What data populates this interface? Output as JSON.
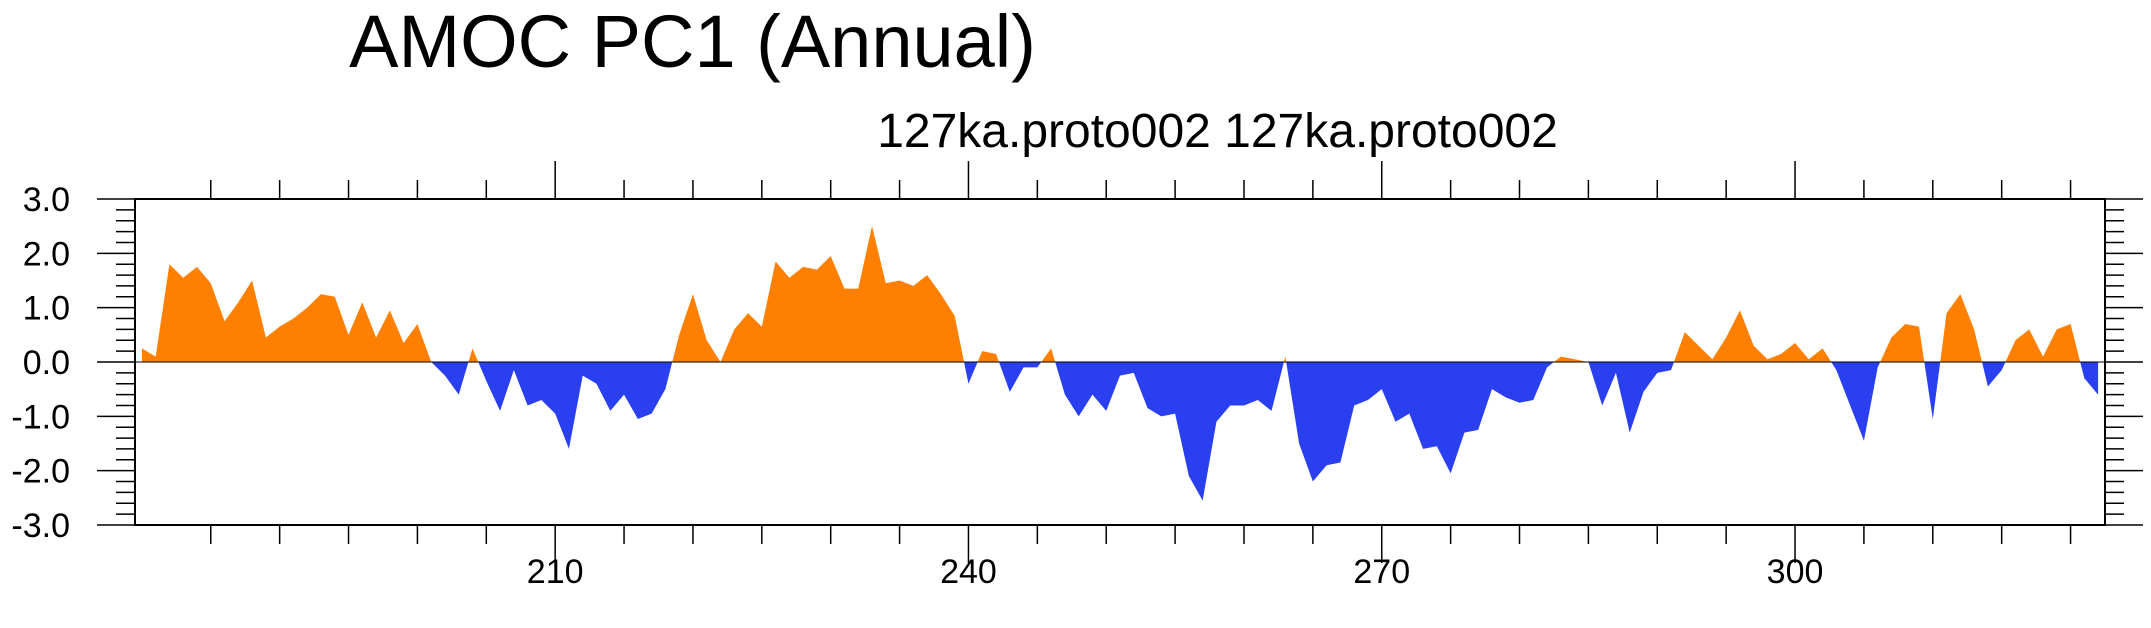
{
  "chart_data": {
    "type": "area",
    "title": "AMOC PC1 (Annual)",
    "subtitle": "127ka.proto002  127ka.proto002",
    "xlabel": "",
    "ylabel": "",
    "xlim": [
      179.5,
      322.5
    ],
    "ylim": [
      -3.0,
      3.0
    ],
    "x_ticks": [
      210,
      240,
      270,
      300
    ],
    "y_ticks": [
      "-3.0",
      "-2.0",
      "-1.0",
      "0.0",
      "1.0",
      "2.0",
      "3.0"
    ],
    "fill_colors": {
      "positive": "#ff8000",
      "negative": "#2a40f0"
    },
    "x_start": 180,
    "x_step": 1,
    "values": [
      0.25,
      0.1,
      1.8,
      1.55,
      1.75,
      1.45,
      0.75,
      1.1,
      1.5,
      0.45,
      0.65,
      0.8,
      1.0,
      1.25,
      1.2,
      0.5,
      1.1,
      0.45,
      0.95,
      0.35,
      0.7,
      0.0,
      -0.25,
      -0.6,
      0.25,
      -0.35,
      -0.9,
      -0.15,
      -0.8,
      -0.7,
      -0.95,
      -1.6,
      -0.25,
      -0.4,
      -0.9,
      -0.6,
      -1.05,
      -0.95,
      -0.5,
      0.5,
      1.25,
      0.4,
      0.0,
      0.6,
      0.9,
      0.65,
      1.85,
      1.55,
      1.75,
      1.7,
      1.95,
      1.35,
      1.35,
      2.5,
      1.45,
      1.5,
      1.4,
      1.6,
      1.25,
      0.85,
      -0.4,
      0.2,
      0.15,
      -0.55,
      -0.1,
      -0.1,
      0.25,
      -0.6,
      -1.0,
      -0.6,
      -0.9,
      -0.25,
      -0.2,
      -0.85,
      -1.0,
      -0.95,
      -2.1,
      -2.55,
      -1.1,
      -0.8,
      -0.8,
      -0.7,
      -0.9,
      0.1,
      -1.5,
      -2.2,
      -1.9,
      -1.85,
      -0.8,
      -0.7,
      -0.5,
      -1.1,
      -0.95,
      -1.6,
      -1.55,
      -2.05,
      -1.3,
      -1.25,
      -0.5,
      -0.65,
      -0.75,
      -0.7,
      -0.1,
      0.1,
      0.05,
      0.0,
      -0.8,
      -0.2,
      -1.3,
      -0.55,
      -0.2,
      -0.15,
      0.55,
      0.3,
      0.05,
      0.45,
      0.95,
      0.3,
      0.05,
      0.15,
      0.35,
      0.05,
      0.25,
      -0.15,
      -0.8,
      -1.45,
      -0.1,
      0.45,
      0.7,
      0.65,
      -1.05,
      0.9,
      1.25,
      0.6,
      -0.45,
      -0.15,
      0.4,
      0.6,
      0.1,
      0.6,
      0.7,
      -0.3,
      -0.6
    ]
  }
}
